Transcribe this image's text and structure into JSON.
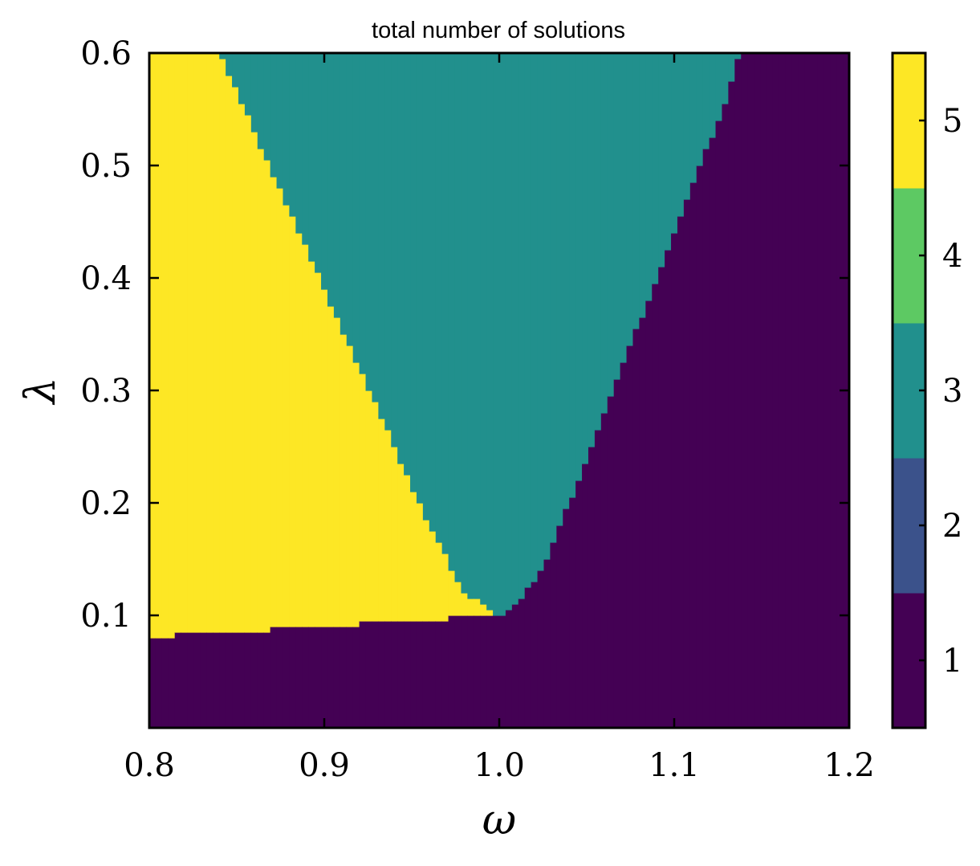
{
  "chart_data": {
    "type": "heatmap",
    "title": "total number of solutions",
    "xlabel": "ω",
    "ylabel": "λ",
    "xlim": [
      0.8,
      1.2
    ],
    "ylim": [
      0.0,
      0.6
    ],
    "x_ticks": [
      "0.8",
      "0.9",
      "1.0",
      "1.1",
      "1.2"
    ],
    "y_ticks": [
      "0.1",
      "0.2",
      "0.3",
      "0.4",
      "0.5",
      "0.6"
    ],
    "colorbar": {
      "ticks": [
        "1",
        "2",
        "3",
        "4",
        "5"
      ],
      "levels": [
        {
          "value": 1,
          "color": "#440154"
        },
        {
          "value": 2,
          "color": "#3b528b"
        },
        {
          "value": 3,
          "color": "#21908d"
        },
        {
          "value": 4,
          "color": "#5dc963"
        },
        {
          "value": 5,
          "color": "#fde725"
        }
      ]
    },
    "regions": {
      "lower_boundary": {
        "description_values": "lambda below which solutions = 1, as function of omega",
        "omega": [
          0.8,
          0.816,
          0.816,
          0.868,
          0.868,
          0.919,
          0.919,
          0.97,
          0.97,
          1.0
        ],
        "lambda": [
          0.08,
          0.08,
          0.085,
          0.085,
          0.09,
          0.09,
          0.095,
          0.095,
          0.1,
          0.1
        ]
      },
      "region_5_right_edge": {
        "omega": [
          0.84,
          0.86,
          0.88,
          0.9,
          0.92,
          0.94,
          0.96,
          0.98,
          1.0
        ],
        "lambda": [
          0.6,
          0.53,
          0.46,
          0.39,
          0.32,
          0.25,
          0.18,
          0.12,
          0.1
        ]
      },
      "region_3_right_edge": {
        "omega": [
          1.0,
          1.01,
          1.02,
          1.03,
          1.04,
          1.05,
          1.06,
          1.07,
          1.08,
          1.09,
          1.1,
          1.11,
          1.12,
          1.13,
          1.137
        ],
        "lambda": [
          0.1,
          0.11,
          0.13,
          0.16,
          0.2,
          0.24,
          0.28,
          0.32,
          0.36,
          0.4,
          0.44,
          0.48,
          0.52,
          0.56,
          0.6
        ]
      }
    }
  }
}
